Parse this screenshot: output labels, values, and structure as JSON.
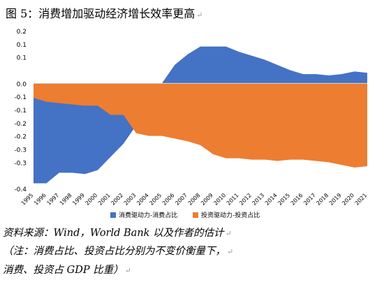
{
  "title": "图 5：消费增加驱动经济增长效率更高",
  "return_mark": "↵",
  "notes": {
    "line1": "资料来源：Wind，World Bank 以及作者的估计",
    "line2": "（注：消费占比、投资占比分别为不变价衡量下，",
    "line3": "消费、投资占 GDP 比重）"
  },
  "colors": {
    "consumption": "#4472C4",
    "investment": "#ED7D31",
    "axis": "#D9D9D9"
  },
  "chart_data": {
    "type": "area",
    "x": [
      "1995",
      "1996",
      "1997",
      "1998",
      "1999",
      "2000",
      "2001",
      "2002",
      "2003",
      "2004",
      "2005",
      "2006",
      "2007",
      "2008",
      "2009",
      "2010",
      "2011",
      "2012",
      "2013",
      "2014",
      "2015",
      "2016",
      "2017",
      "2018",
      "2019",
      "2020",
      "2021"
    ],
    "series": [
      {
        "name": "消费驱动力-消费占比",
        "values": [
          -0.38,
          -0.38,
          -0.34,
          -0.34,
          -0.345,
          -0.33,
          -0.28,
          -0.23,
          -0.16,
          -0.06,
          0.0,
          0.07,
          0.11,
          0.14,
          0.14,
          0.14,
          0.12,
          0.105,
          0.09,
          0.07,
          0.05,
          0.035,
          0.035,
          0.03,
          0.035,
          0.045,
          0.04
        ]
      },
      {
        "name": "投资驱动力-投资占比",
        "values": [
          -0.055,
          -0.07,
          -0.075,
          -0.08,
          -0.085,
          -0.085,
          -0.12,
          -0.12,
          -0.19,
          -0.2,
          -0.2,
          -0.21,
          -0.22,
          -0.235,
          -0.27,
          -0.285,
          -0.285,
          -0.29,
          -0.29,
          -0.295,
          -0.29,
          -0.29,
          -0.295,
          -0.3,
          -0.31,
          -0.32,
          -0.315
        ]
      }
    ],
    "ylim": [
      -0.4,
      0.2
    ],
    "yticks": [
      "0.2",
      "0.1",
      "0.1",
      "0.0",
      "-0.1",
      "-0.1",
      "-0.2",
      "-0.2",
      "-0.3",
      "-0.3",
      "-0.4"
    ],
    "ytick_values": [
      0.2,
      0.15,
      0.1,
      0.0,
      -0.05,
      -0.1,
      -0.15,
      -0.2,
      -0.25,
      -0.3,
      -0.4
    ],
    "legend_position": "bottom"
  }
}
